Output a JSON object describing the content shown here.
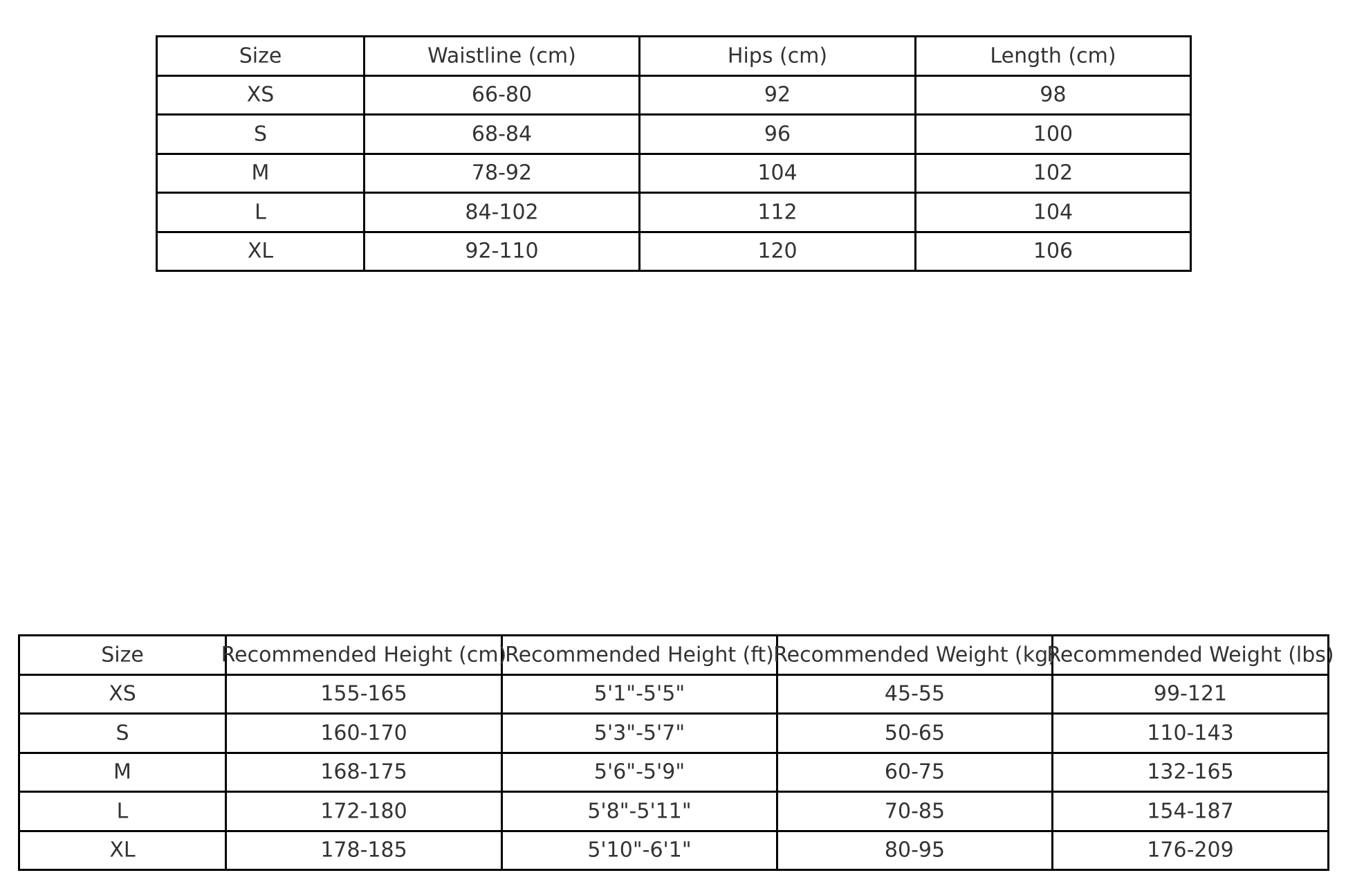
{
  "measurements_table": {
    "headers": [
      "Size",
      "Waistline (cm)",
      "Hips (cm)",
      "Length (cm)"
    ],
    "rows": [
      [
        "XS",
        "66-80",
        "92",
        "98"
      ],
      [
        "S",
        "68-84",
        "96",
        "100"
      ],
      [
        "M",
        "78-92",
        "104",
        "102"
      ],
      [
        "L",
        "84-102",
        "112",
        "104"
      ],
      [
        "XL",
        "92-110",
        "120",
        "106"
      ]
    ]
  },
  "recommendation_table": {
    "headers": [
      "Size",
      "Recommended Height (cm)",
      "Recommended Height (ft)",
      "Recommended Weight (kg)",
      "Recommended Weight (lbs)"
    ],
    "rows": [
      [
        "XS",
        "155-165",
        "5'1\"-5'5\"",
        "45-55",
        "99-121"
      ],
      [
        "S",
        "160-170",
        "5'3\"-5'7\"",
        "50-65",
        "110-143"
      ],
      [
        "M",
        "168-175",
        "5'6\"-5'9\"",
        "60-75",
        "132-165"
      ],
      [
        "L",
        "172-180",
        "5'8\"-5'11\"",
        "70-85",
        "154-187"
      ],
      [
        "XL",
        "178-185",
        "5'10\"-6'1\"",
        "80-95",
        "176-209"
      ]
    ]
  }
}
